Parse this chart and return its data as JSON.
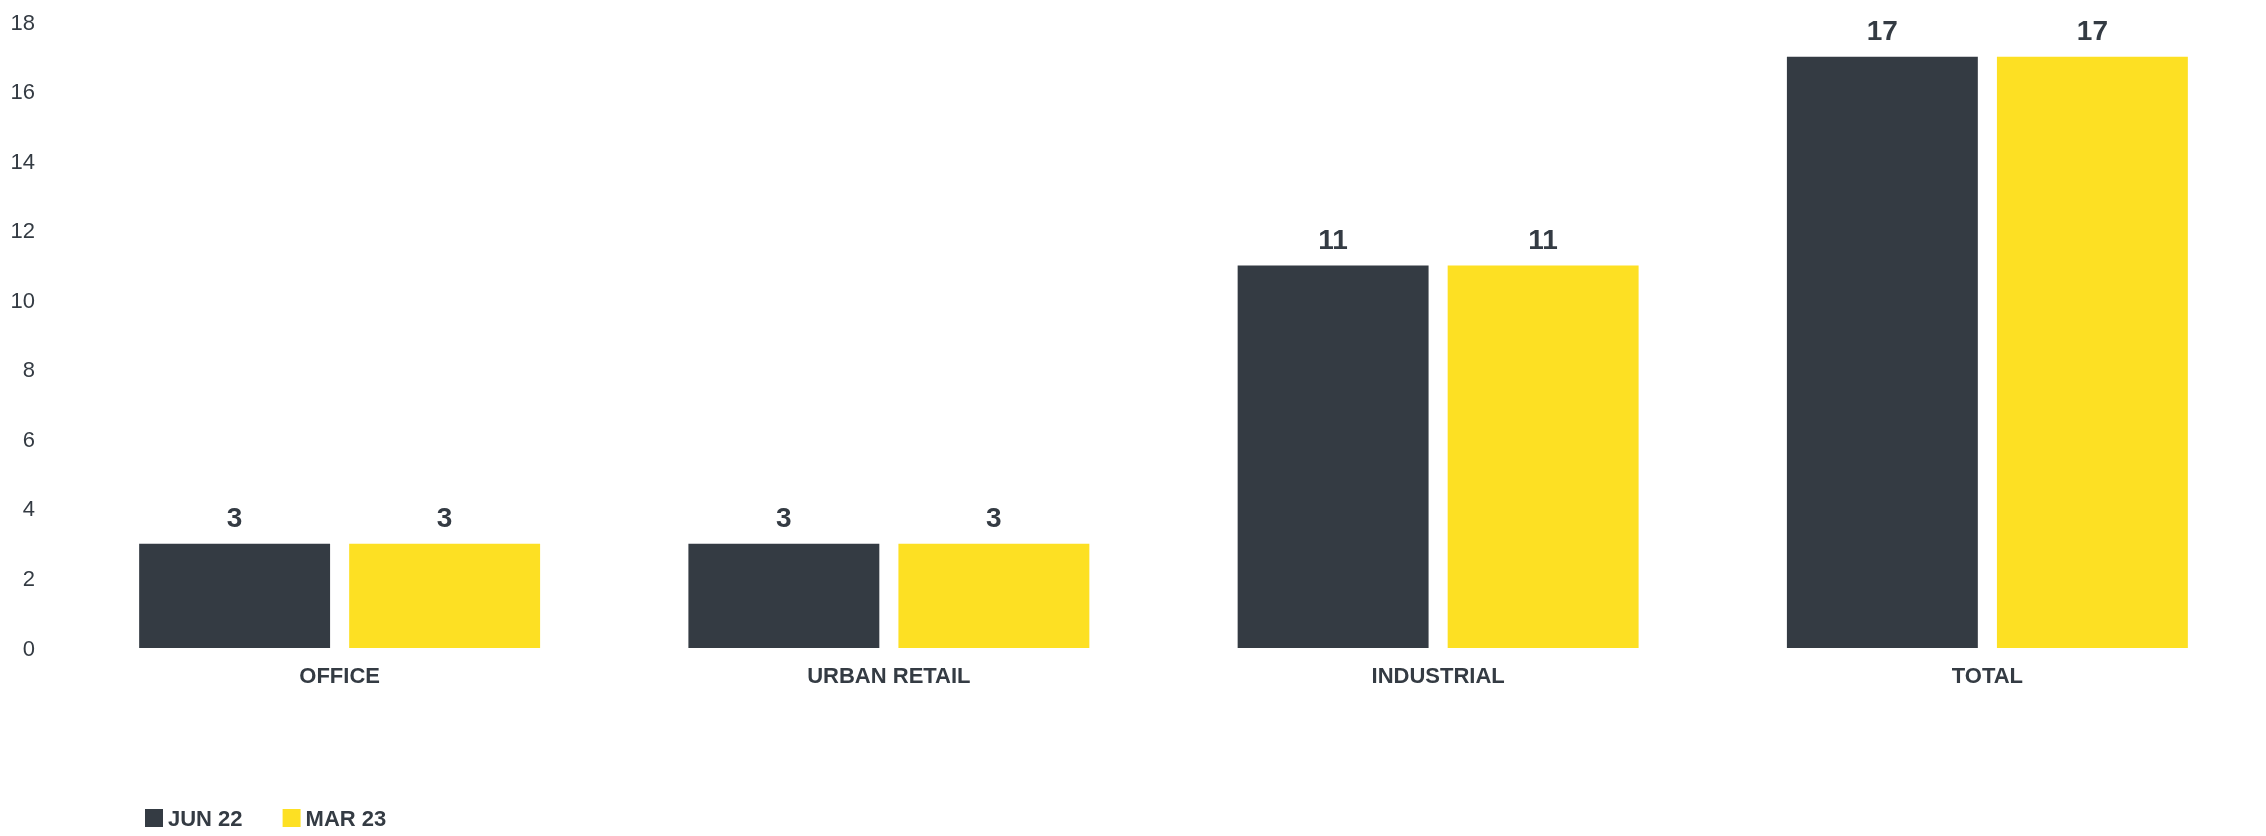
{
  "chart_data": {
    "type": "bar",
    "categories": [
      "OFFICE",
      "URBAN RETAIL",
      "INDUSTRIAL",
      "TOTAL"
    ],
    "series": [
      {
        "name": "JUN 22",
        "color": "#343b43",
        "values": [
          3,
          3,
          11,
          17
        ]
      },
      {
        "name": "MAR 23",
        "color": "#fde023",
        "values": [
          3,
          3,
          11,
          17
        ]
      }
    ],
    "ylim": [
      0,
      18
    ],
    "yticks": [
      0,
      2,
      4,
      6,
      8,
      10,
      12,
      14,
      16,
      18
    ],
    "data_labels": true,
    "grid": false,
    "legend": "bottom left"
  }
}
